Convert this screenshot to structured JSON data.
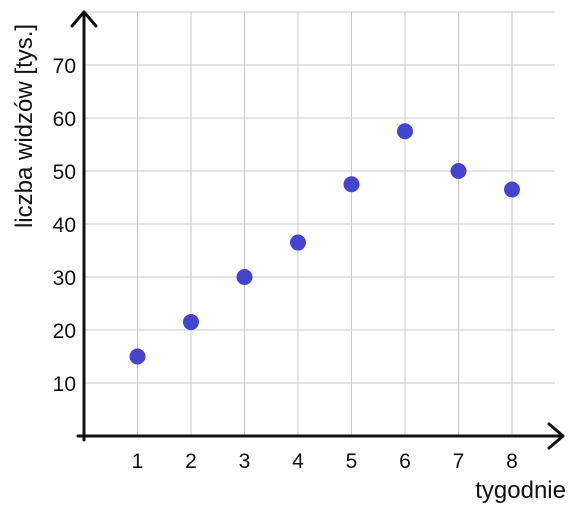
{
  "chart_data": {
    "type": "scatter",
    "title": "",
    "xlabel": "tygodnie",
    "ylabel": "liczba widzów [tys.]",
    "x": [
      1,
      2,
      3,
      4,
      5,
      6,
      7,
      8
    ],
    "y": [
      15,
      21.5,
      30,
      36.5,
      47.5,
      57.5,
      50,
      46.5
    ],
    "x_ticks": [
      "1",
      "2",
      "3",
      "4",
      "5",
      "6",
      "7",
      "8"
    ],
    "y_ticks": [
      "10",
      "20",
      "30",
      "40",
      "50",
      "60",
      "70"
    ],
    "xlim": [
      0,
      9
    ],
    "ylim": [
      0,
      80
    ],
    "grid": true,
    "marker_color": "#4444cc",
    "grid_color": "#c8c8c8",
    "axis_color": "#111111"
  }
}
